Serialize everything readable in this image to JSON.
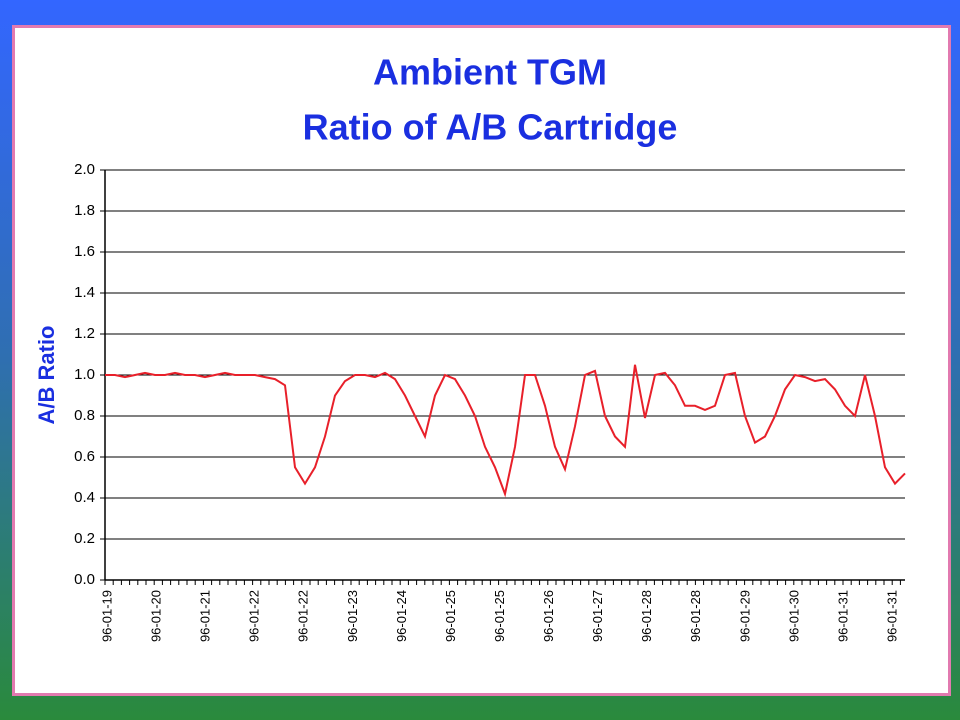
{
  "chart_data": {
    "type": "line",
    "title": "Ambient TGM",
    "subtitle": "Ratio of A/B Cartridge",
    "y_label": "A/B Ratio",
    "ylim": [
      0,
      2
    ],
    "yticks": [
      {
        "value": 0,
        "label": "0.0"
      },
      0.2,
      0.4,
      0.6,
      0.8,
      {
        "value": 1,
        "label": "1.0"
      },
      1.2,
      1.4,
      1.6,
      1.8,
      {
        "value": 2,
        "label": "2.0"
      }
    ],
    "grid": true,
    "xtick_labels": [
      "96-01-19",
      "96-01-20",
      "96-01-21",
      "96-01-22",
      "96-01-22",
      "96-01-23",
      "96-01-24",
      "96-01-25",
      "96-01-25",
      "96-01-26",
      "96-01-27",
      "96-01-28",
      "96-01-28",
      "96-01-29",
      "96-01-30",
      "96-01-31",
      "96-01-31"
    ],
    "series": [
      {
        "color": "#e8202a",
        "values": [
          1.0,
          1.0,
          0.99,
          1.0,
          1.01,
          1.0,
          1.0,
          1.01,
          1.0,
          1.0,
          0.99,
          1.0,
          1.01,
          1.0,
          1.0,
          1.0,
          0.99,
          0.98,
          0.95,
          0.55,
          0.47,
          0.55,
          0.7,
          0.9,
          0.97,
          1.0,
          1.0,
          0.99,
          1.01,
          0.98,
          0.9,
          0.8,
          0.7,
          0.9,
          1.0,
          0.98,
          0.9,
          0.8,
          0.65,
          0.55,
          0.42,
          0.65,
          1.0,
          1.0,
          0.85,
          0.65,
          0.54,
          0.75,
          1.0,
          1.02,
          0.8,
          0.7,
          0.65,
          1.05,
          0.79,
          1.0,
          1.01,
          0.95,
          0.85,
          0.85,
          0.83,
          0.85,
          1.0,
          1.01,
          0.8,
          0.67,
          0.7,
          0.8,
          0.93,
          1.0,
          0.99,
          0.97,
          0.98,
          0.93,
          0.85,
          0.8,
          1.0,
          0.8,
          0.55,
          0.47,
          0.52
        ]
      }
    ]
  }
}
